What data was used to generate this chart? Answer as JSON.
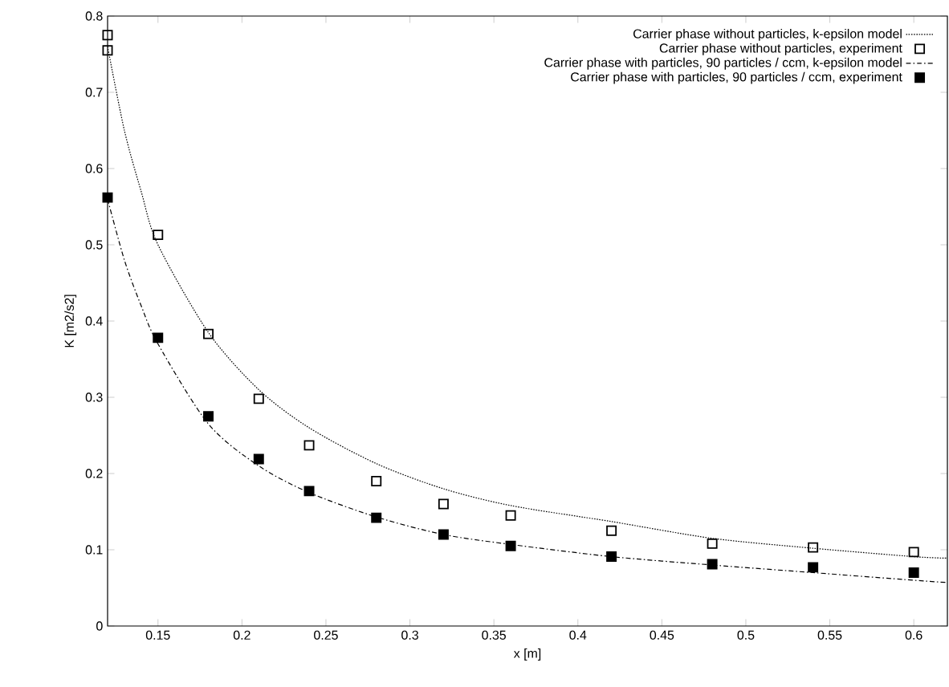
{
  "chart_data": {
    "type": "line",
    "xlabel": "x [m]",
    "ylabel": "K [m2/s2]",
    "xlim": [
      0.12,
      0.62
    ],
    "ylim": [
      0,
      0.8
    ],
    "xticks": [
      0.15,
      0.2,
      0.25,
      0.3,
      0.35,
      0.4,
      0.45,
      0.5,
      0.55,
      0.6
    ],
    "yticks": [
      0,
      0.1,
      0.2,
      0.3,
      0.4,
      0.5,
      0.6,
      0.7,
      0.8
    ],
    "grid": false,
    "legend": "top right",
    "series": [
      {
        "name": "Carrier phase without particles, k-epsilon model",
        "color": "#000000",
        "line_style": "dotted",
        "marker": "none",
        "x": [
          0.12,
          0.13,
          0.14,
          0.15,
          0.18,
          0.21,
          0.24,
          0.28,
          0.32,
          0.36,
          0.42,
          0.48,
          0.54,
          0.6,
          0.62
        ],
        "values": [
          0.76,
          0.65,
          0.57,
          0.5,
          0.385,
          0.31,
          0.26,
          0.213,
          0.18,
          0.158,
          0.137,
          0.115,
          0.102,
          0.091,
          0.089
        ]
      },
      {
        "name": "Carrier phase without particles, experiment",
        "type": "scatter",
        "color": "#000000",
        "marker": "square",
        "x": [
          0.12,
          0.12,
          0.15,
          0.18,
          0.21,
          0.24,
          0.28,
          0.32,
          0.36,
          0.42,
          0.48,
          0.54,
          0.6
        ],
        "values": [
          0.775,
          0.755,
          0.513,
          0.383,
          0.298,
          0.237,
          0.19,
          0.16,
          0.145,
          0.125,
          0.108,
          0.103,
          0.097
        ]
      },
      {
        "name": "Carrier phase with particles, 90 particles / ccm, k-epsilon model",
        "color": "#000000",
        "line_style": "dashed",
        "marker": "none",
        "x": [
          0.12,
          0.13,
          0.14,
          0.15,
          0.18,
          0.21,
          0.24,
          0.28,
          0.32,
          0.36,
          0.42,
          0.48,
          0.54,
          0.6,
          0.62
        ],
        "values": [
          0.56,
          0.48,
          0.42,
          0.37,
          0.265,
          0.21,
          0.175,
          0.143,
          0.12,
          0.107,
          0.091,
          0.08,
          0.07,
          0.06,
          0.057
        ]
      },
      {
        "name": "Carrier phase with particles, 90 particles / ccm, experiment",
        "type": "scatter",
        "color": "#000000",
        "marker": "square",
        "x": [
          0.12,
          0.15,
          0.18,
          0.21,
          0.24,
          0.28,
          0.32,
          0.36,
          0.42,
          0.48,
          0.54,
          0.6
        ],
        "values": [
          0.562,
          0.378,
          0.275,
          0.219,
          0.177,
          0.142,
          0.12,
          0.105,
          0.091,
          0.081,
          0.077,
          0.07
        ]
      }
    ]
  }
}
